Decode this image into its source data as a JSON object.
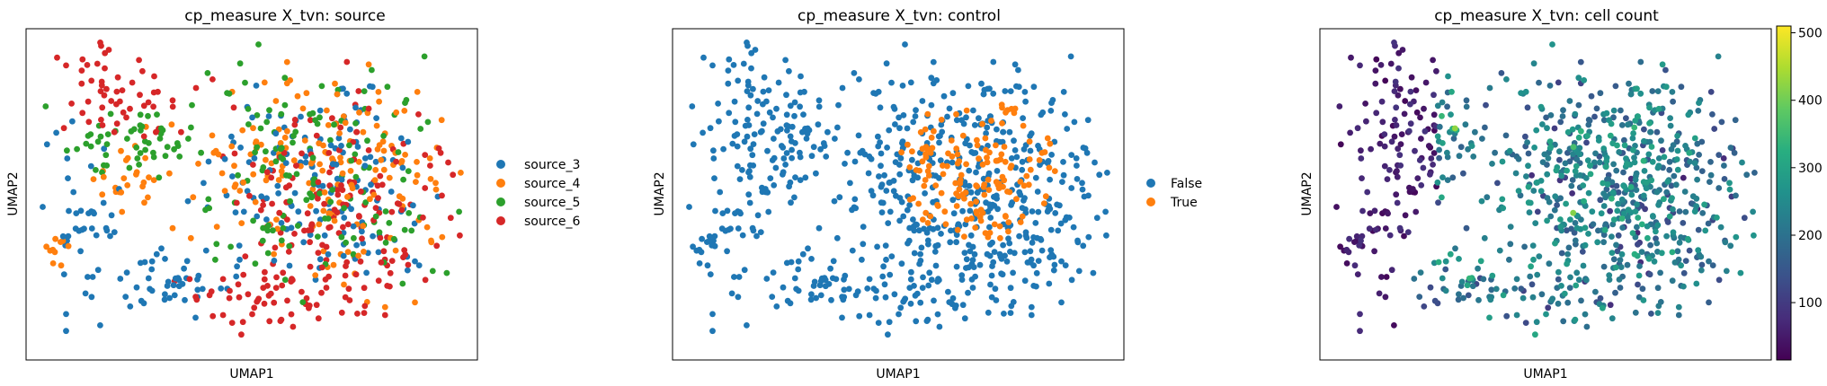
{
  "chart_data": [
    {
      "type": "scatter",
      "title": "cp_measure X_tvn: source",
      "xlabel": "UMAP1",
      "ylabel": "UMAP2",
      "legend_placement": "right-outside",
      "ticks": "none",
      "grid": false,
      "series": [
        {
          "name": "source_3",
          "color": "#1f77b4"
        },
        {
          "name": "source_4",
          "color": "#ff7f0e"
        },
        {
          "name": "source_5",
          "color": "#2ca02c"
        },
        {
          "name": "source_6",
          "color": "#d62728"
        }
      ]
    },
    {
      "type": "scatter",
      "title": "cp_measure X_tvn: control",
      "xlabel": "UMAP1",
      "ylabel": "UMAP2",
      "legend_placement": "right-outside",
      "ticks": "none",
      "grid": false,
      "series": [
        {
          "name": "False",
          "color": "#1f77b4"
        },
        {
          "name": "True",
          "color": "#ff7f0e"
        }
      ]
    },
    {
      "type": "scatter",
      "title": "cp_measure X_tvn: cell count",
      "xlabel": "UMAP1",
      "ylabel": "UMAP2",
      "ticks": "none",
      "grid": false,
      "colorbar": {
        "colormap": "viridis",
        "range": [
          15,
          510
        ],
        "ticks": [
          100,
          200,
          300,
          400,
          500
        ],
        "tick_labels": [
          "100",
          "200",
          "300",
          "400",
          "500"
        ]
      }
    }
  ]
}
